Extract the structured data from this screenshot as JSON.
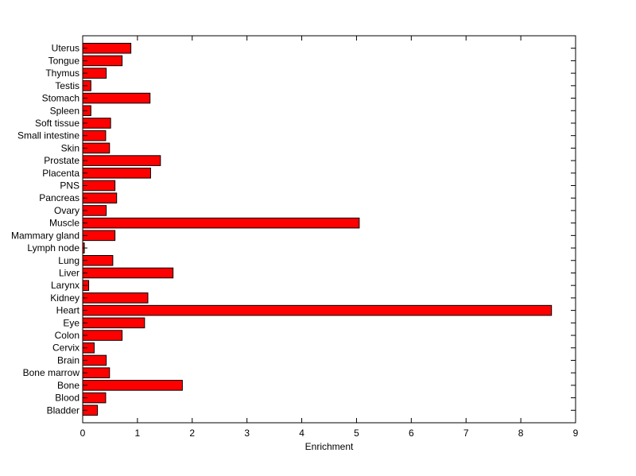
{
  "chart_data": {
    "type": "bar",
    "orientation": "horizontal",
    "categories": [
      "Bladder",
      "Blood",
      "Bone",
      "Bone marrow",
      "Brain",
      "Cervix",
      "Colon",
      "Eye",
      "Heart",
      "Kidney",
      "Larynx",
      "Liver",
      "Lung",
      "Lymph node",
      "Mammary gland",
      "Muscle",
      "Ovary",
      "Pancreas",
      "PNS",
      "Placenta",
      "Prostate",
      "Skin",
      "Small intestine",
      "Soft tissue",
      "Spleen",
      "Stomach",
      "Testis",
      "Thymus",
      "Tongue",
      "Uterus"
    ],
    "values": [
      0.27,
      0.42,
      1.82,
      0.49,
      0.43,
      0.21,
      0.72,
      1.13,
      8.56,
      1.19,
      0.11,
      1.65,
      0.55,
      0.03,
      0.59,
      5.05,
      0.43,
      0.62,
      0.59,
      1.24,
      1.42,
      0.49,
      0.42,
      0.51,
      0.15,
      1.23,
      0.15,
      0.43,
      0.72,
      0.88
    ],
    "title": "",
    "xlabel": "Enrichment",
    "ylabel": "",
    "xlim": [
      0,
      9
    ],
    "xticks": [
      0,
      1,
      2,
      3,
      4,
      5,
      6,
      7,
      8,
      9
    ],
    "bar_color": "#ff0000",
    "grid": false,
    "legend": "none"
  }
}
